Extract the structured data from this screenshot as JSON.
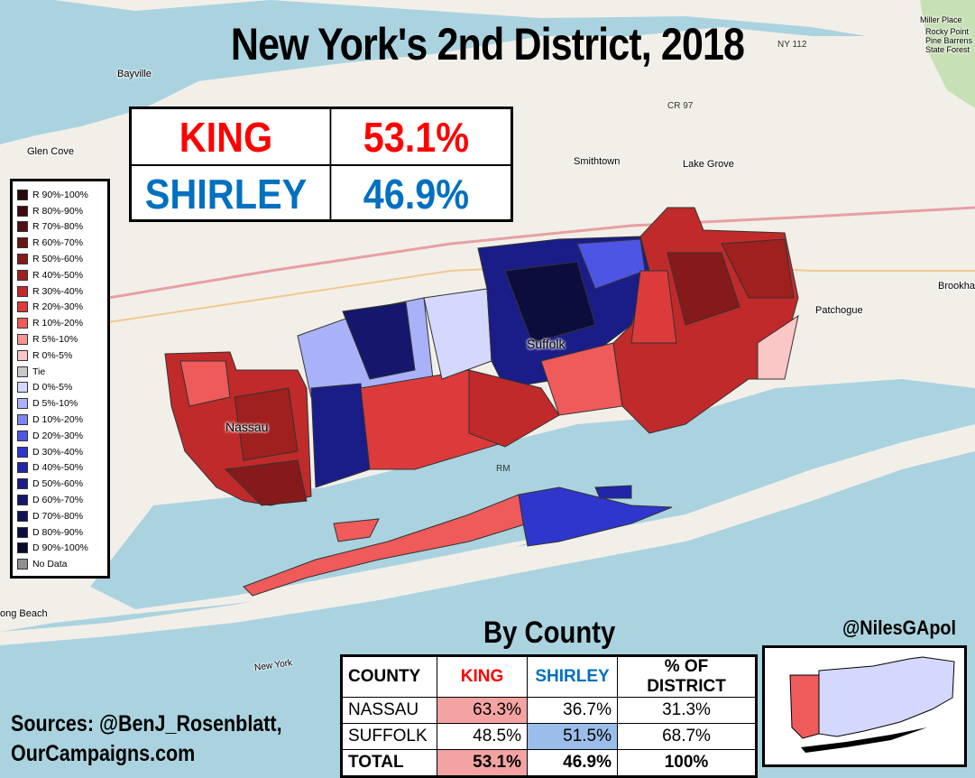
{
  "title": "New York's 2nd District, 2018",
  "result": {
    "candidate1": {
      "name": "KING",
      "pct": "53.1%",
      "color": "#ff0000"
    },
    "candidate2": {
      "name": "SHIRLEY",
      "pct": "46.9%",
      "color": "#0070c0"
    }
  },
  "legend": [
    {
      "label": "R 90%-100%",
      "color": "#2a0a0a"
    },
    {
      "label": "R 80%-90%",
      "color": "#3d0d0d"
    },
    {
      "label": "R 70%-80%",
      "color": "#511011"
    },
    {
      "label": "R 60%-70%",
      "color": "#6b1414"
    },
    {
      "label": "R 50%-60%",
      "color": "#861a1a"
    },
    {
      "label": "R 40%-50%",
      "color": "#a01f1f"
    },
    {
      "label": "R 30%-40%",
      "color": "#c02a2a"
    },
    {
      "label": "R 20%-30%",
      "color": "#dd3b3b"
    },
    {
      "label": "R 10%-20%",
      "color": "#ef5a5a"
    },
    {
      "label": "R 5%-10%",
      "color": "#f79393"
    },
    {
      "label": "R 0%-5%",
      "color": "#fbc6c6"
    },
    {
      "label": "Tie",
      "color": "#c8c8c8"
    },
    {
      "label": "D 0%-5%",
      "color": "#d4d8ff"
    },
    {
      "label": "D 5%-10%",
      "color": "#a9b1f8"
    },
    {
      "label": "D 10%-20%",
      "color": "#7b84f0"
    },
    {
      "label": "D 20%-30%",
      "color": "#4d55e4"
    },
    {
      "label": "D 30%-40%",
      "color": "#2f36cc"
    },
    {
      "label": "D 40%-50%",
      "color": "#2126a8"
    },
    {
      "label": "D 50%-60%",
      "color": "#1a1d88"
    },
    {
      "label": "D 60%-70%",
      "color": "#15176c"
    },
    {
      "label": "D 70%-80%",
      "color": "#111253"
    },
    {
      "label": "D 80%-90%",
      "color": "#0d0d3d"
    },
    {
      "label": "D 90%-100%",
      "color": "#09092a"
    },
    {
      "label": "No Data",
      "color": "#8f8f8f"
    }
  ],
  "map_labels": {
    "nassau": "Nassau",
    "suffolk": "Suffolk",
    "towns": [
      "Glen Cove",
      "Bayville",
      "Smithtown",
      "Lake Grove",
      "Patchogue",
      "Brookhav",
      "ong Beach",
      "New York",
      "Miller Place",
      "Rocky Point Pine Barrens State Forest",
      "RM",
      "CR 97",
      "NY 112"
    ]
  },
  "county_section": {
    "heading": "By County",
    "columns": [
      "COUNTY",
      "KING",
      "SHIRLEY",
      "% OF DISTRICT"
    ],
    "rows": [
      {
        "county": "NASSAU",
        "king": "63.3%",
        "shirley": "36.7%",
        "pct": "31.3%",
        "winner": "king"
      },
      {
        "county": "SUFFOLK",
        "king": "48.5%",
        "shirley": "51.5%",
        "pct": "68.7%",
        "winner": "shirley"
      },
      {
        "county": "TOTAL",
        "king": "53.1%",
        "shirley": "46.9%",
        "pct": "100%",
        "winner": "king"
      }
    ]
  },
  "handle": "@NilesGApol",
  "sources": {
    "line1": "Sources: @BenJ_Rosenblatt,",
    "line2": "OurCampaigns.com"
  },
  "colors": {
    "water": "#aad3df",
    "land": "#f2efe9",
    "king_cell": "#f4a3a3",
    "shirley_cell": "#9bbde9"
  }
}
